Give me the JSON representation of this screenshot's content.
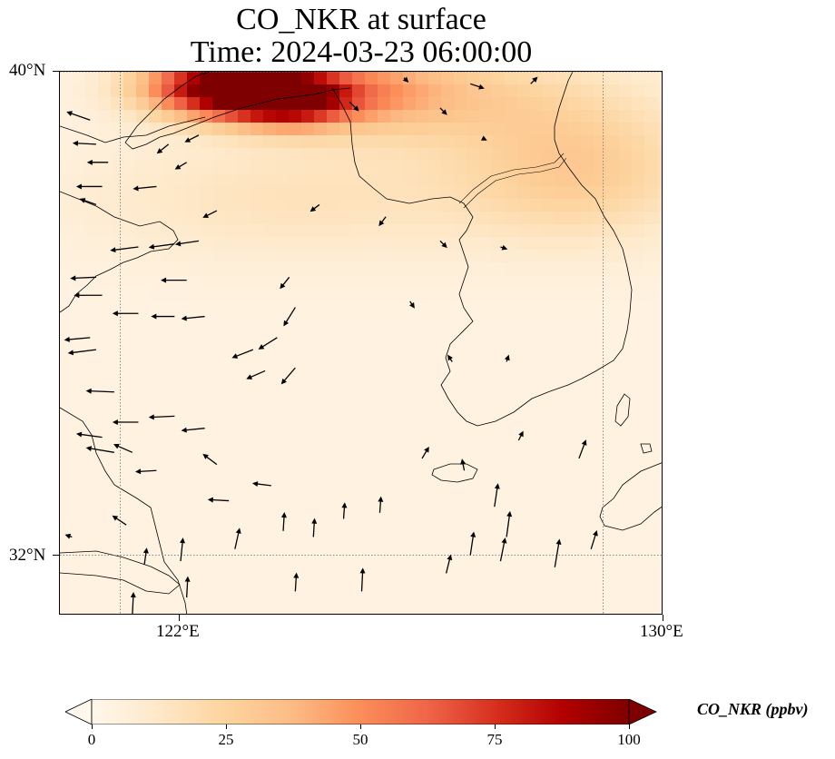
{
  "title": {
    "line1": "CO_NKR at surface",
    "line2": "Time: 2024-03-23 06:00:00"
  },
  "map": {
    "extent": {
      "lon_min": 121.0,
      "lon_max": 131.0,
      "lat_min": 31.0,
      "lat_max": 40.0
    },
    "gridlines": {
      "lons": [
        122,
        130
      ],
      "lats": [
        32,
        40
      ],
      "style": "dotted",
      "color": "#888888"
    },
    "lat_ticks": [
      {
        "value": 40,
        "label": "40°N"
      },
      {
        "value": 32,
        "label": "32°N"
      }
    ],
    "lon_ticks": [
      {
        "value": 122,
        "label": "122°E"
      },
      {
        "value": 130,
        "label": "130°E"
      }
    ]
  },
  "field": {
    "variable": "CO_NKR",
    "units": "ppbv",
    "cmap": "OrRd",
    "plumes": [
      {
        "lon": 123.7,
        "lat": 39.75,
        "value": 98,
        "sigma_lon": 0.9,
        "sigma_lat": 0.35
      },
      {
        "lon": 124.8,
        "lat": 39.55,
        "value": 70,
        "sigma_lon": 0.7,
        "sigma_lat": 0.3
      },
      {
        "lon": 125.8,
        "lat": 39.7,
        "value": 32,
        "sigma_lon": 1.2,
        "sigma_lat": 0.45
      },
      {
        "lon": 129.6,
        "lat": 38.4,
        "value": 24,
        "sigma_lon": 1.4,
        "sigma_lat": 0.8
      },
      {
        "lon": 127.5,
        "lat": 39.6,
        "value": 18,
        "sigma_lon": 1.8,
        "sigma_lat": 0.6
      },
      {
        "lon": 125.0,
        "lat": 37.9,
        "value": 12,
        "sigma_lon": 2.5,
        "sigma_lat": 0.7
      }
    ],
    "background": 4
  },
  "colorbar": {
    "label": "CO_NKR (ppbv)",
    "min": 0,
    "max": 100,
    "ticks": [
      {
        "value": 0,
        "label": "0"
      },
      {
        "value": 25,
        "label": "25"
      },
      {
        "value": 50,
        "label": "50"
      },
      {
        "value": 75,
        "label": "75"
      },
      {
        "value": 100,
        "label": "100"
      }
    ],
    "extend": "both"
  },
  "wind_vectors": [
    {
      "lon": 121.5,
      "lat": 39.2,
      "u": -1.0,
      "v": 0.35
    },
    {
      "lon": 121.6,
      "lat": 38.8,
      "u": -1.0,
      "v": 0.05
    },
    {
      "lon": 121.8,
      "lat": 38.5,
      "u": -0.9,
      "v": 0.0
    },
    {
      "lon": 121.7,
      "lat": 38.1,
      "u": -1.1,
      "v": 0.0
    },
    {
      "lon": 122.6,
      "lat": 38.1,
      "u": -1.0,
      "v": -0.1
    },
    {
      "lon": 121.6,
      "lat": 37.8,
      "u": -0.7,
      "v": 0.25
    },
    {
      "lon": 122.3,
      "lat": 37.1,
      "u": -1.2,
      "v": -0.15
    },
    {
      "lon": 122.9,
      "lat": 37.15,
      "u": -1.1,
      "v": -0.15
    },
    {
      "lon": 123.3,
      "lat": 37.2,
      "u": -1.0,
      "v": -0.15
    },
    {
      "lon": 123.1,
      "lat": 36.55,
      "u": -1.1,
      "v": 0.0
    },
    {
      "lon": 121.6,
      "lat": 36.6,
      "u": -1.1,
      "v": -0.05
    },
    {
      "lon": 121.7,
      "lat": 36.3,
      "u": -1.2,
      "v": 0.0
    },
    {
      "lon": 122.3,
      "lat": 36.0,
      "u": -1.1,
      "v": 0.0
    },
    {
      "lon": 122.9,
      "lat": 35.95,
      "u": -1.0,
      "v": 0.0
    },
    {
      "lon": 123.4,
      "lat": 35.95,
      "u": -1.0,
      "v": -0.1
    },
    {
      "lon": 121.6,
      "lat": 35.4,
      "u": -1.2,
      "v": -0.15
    },
    {
      "lon": 121.5,
      "lat": 35.6,
      "u": -1.1,
      "v": -0.1
    },
    {
      "lon": 121.9,
      "lat": 34.7,
      "u": -1.2,
      "v": 0.05
    },
    {
      "lon": 122.3,
      "lat": 34.2,
      "u": -1.1,
      "v": 0.0
    },
    {
      "lon": 122.9,
      "lat": 34.3,
      "u": -1.1,
      "v": -0.05
    },
    {
      "lon": 123.4,
      "lat": 34.1,
      "u": -1.0,
      "v": -0.1
    },
    {
      "lon": 121.7,
      "lat": 33.95,
      "u": -1.1,
      "v": 0.15
    },
    {
      "lon": 121.9,
      "lat": 33.7,
      "u": -1.2,
      "v": 0.2
    },
    {
      "lon": 122.2,
      "lat": 33.7,
      "u": -0.8,
      "v": 0.35
    },
    {
      "lon": 123.6,
      "lat": 33.5,
      "u": -0.6,
      "v": 0.45
    },
    {
      "lon": 124.2,
      "lat": 35.4,
      "u": -0.9,
      "v": -0.35
    },
    {
      "lon": 124.4,
      "lat": 35.05,
      "u": -0.8,
      "v": -0.35
    },
    {
      "lon": 124.6,
      "lat": 35.6,
      "u": -0.8,
      "v": -0.5
    },
    {
      "lon": 124.9,
      "lat": 35.1,
      "u": -0.6,
      "v": -0.7
    },
    {
      "lon": 124.9,
      "lat": 36.1,
      "u": -0.5,
      "v": -0.8
    },
    {
      "lon": 124.8,
      "lat": 36.6,
      "u": -0.4,
      "v": -0.5
    },
    {
      "lon": 123.1,
      "lat": 38.5,
      "u": -0.5,
      "v": -0.3
    },
    {
      "lon": 122.8,
      "lat": 38.8,
      "u": -0.5,
      "v": -0.4
    },
    {
      "lon": 123.3,
      "lat": 38.95,
      "u": -0.6,
      "v": -0.3
    },
    {
      "lon": 123.6,
      "lat": 37.7,
      "u": -0.6,
      "v": -0.3
    },
    {
      "lon": 125.8,
      "lat": 39.5,
      "u": 0.4,
      "v": -0.4
    },
    {
      "lon": 125.3,
      "lat": 37.8,
      "u": -0.4,
      "v": -0.3
    },
    {
      "lon": 126.4,
      "lat": 37.6,
      "u": -0.3,
      "v": -0.4
    },
    {
      "lon": 126.7,
      "lat": 39.9,
      "u": 0.2,
      "v": -0.2
    },
    {
      "lon": 127.3,
      "lat": 39.4,
      "u": 0.3,
      "v": -0.3
    },
    {
      "lon": 127.8,
      "lat": 39.8,
      "u": 0.6,
      "v": -0.2
    },
    {
      "lon": 128.0,
      "lat": 38.9,
      "u": 0.2,
      "v": -0.1
    },
    {
      "lon": 128.8,
      "lat": 39.8,
      "u": 0.3,
      "v": 0.3
    },
    {
      "lon": 127.3,
      "lat": 37.2,
      "u": 0.3,
      "v": -0.3
    },
    {
      "lon": 128.3,
      "lat": 37.1,
      "u": 0.3,
      "v": -0.1
    },
    {
      "lon": 128.4,
      "lat": 35.2,
      "u": 0.1,
      "v": 0.3
    },
    {
      "lon": 127.5,
      "lat": 35.2,
      "u": -0.2,
      "v": 0.3
    },
    {
      "lon": 126.8,
      "lat": 36.2,
      "u": 0.2,
      "v": -0.3
    },
    {
      "lon": 128.2,
      "lat": 32.8,
      "u": 0.15,
      "v": 1.0
    },
    {
      "lon": 128.4,
      "lat": 32.3,
      "u": 0.15,
      "v": 1.1
    },
    {
      "lon": 129.2,
      "lat": 31.8,
      "u": 0.2,
      "v": 1.2
    },
    {
      "lon": 127.4,
      "lat": 31.7,
      "u": 0.2,
      "v": 0.8
    },
    {
      "lon": 127.8,
      "lat": 32.0,
      "u": 0.15,
      "v": 1.0
    },
    {
      "lon": 128.3,
      "lat": 31.9,
      "u": 0.2,
      "v": 1.0
    },
    {
      "lon": 126.0,
      "lat": 31.4,
      "u": 0.05,
      "v": 1.0
    },
    {
      "lon": 125.2,
      "lat": 32.3,
      "u": 0.05,
      "v": 0.8
    },
    {
      "lon": 124.7,
      "lat": 32.4,
      "u": 0.05,
      "v": 0.8
    },
    {
      "lon": 123.9,
      "lat": 32.1,
      "u": 0.2,
      "v": 0.9
    },
    {
      "lon": 123.0,
      "lat": 31.9,
      "u": 0.1,
      "v": 1.0
    },
    {
      "lon": 122.2,
      "lat": 31.0,
      "u": 0.05,
      "v": 1.0
    },
    {
      "lon": 122.4,
      "lat": 31.85,
      "u": 0.1,
      "v": 0.7
    },
    {
      "lon": 124.9,
      "lat": 31.4,
      "u": 0.05,
      "v": 0.8
    },
    {
      "lon": 125.7,
      "lat": 32.6,
      "u": 0.05,
      "v": 0.7
    },
    {
      "lon": 126.3,
      "lat": 32.7,
      "u": 0.05,
      "v": 0.7
    },
    {
      "lon": 129.8,
      "lat": 32.1,
      "u": 0.25,
      "v": 0.8
    },
    {
      "lon": 129.6,
      "lat": 33.6,
      "u": 0.3,
      "v": 0.8
    },
    {
      "lon": 127.0,
      "lat": 33.6,
      "u": 0.3,
      "v": 0.5
    },
    {
      "lon": 127.7,
      "lat": 33.4,
      "u": -0.1,
      "v": 0.5
    },
    {
      "lon": 123.1,
      "lat": 31.3,
      "u": 0.05,
      "v": 0.9
    },
    {
      "lon": 124.5,
      "lat": 33.15,
      "u": -0.8,
      "v": 0.1
    },
    {
      "lon": 123.8,
      "lat": 32.9,
      "u": -0.9,
      "v": 0.05
    },
    {
      "lon": 122.6,
      "lat": 33.4,
      "u": -0.9,
      "v": -0.05
    },
    {
      "lon": 122.1,
      "lat": 32.5,
      "u": -0.6,
      "v": 0.4
    },
    {
      "lon": 121.2,
      "lat": 32.3,
      "u": -0.3,
      "v": 0.1
    },
    {
      "lon": 121.3,
      "lat": 30.8,
      "u": -0.4,
      "v": 0.2
    },
    {
      "lon": 128.6,
      "lat": 33.9,
      "u": 0.2,
      "v": 0.4
    }
  ]
}
